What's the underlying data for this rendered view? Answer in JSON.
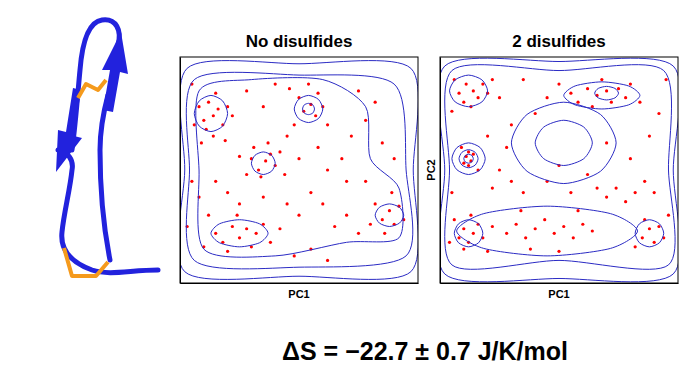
{
  "chart_data": [
    {
      "type": "scatter",
      "title": "No disulfides",
      "x_label": "PC1",
      "xlim": [
        0,
        100
      ],
      "ylim": [
        0,
        100
      ],
      "xticks": [],
      "yticks": [],
      "tick_labels": false,
      "series": [
        {
          "type": "scatter",
          "color": "#ff0000",
          "marker": "dot",
          "x": [
            8,
            10,
            12,
            14,
            16,
            11,
            18,
            6,
            15,
            20,
            9,
            14,
            19,
            22,
            30,
            33,
            36,
            38,
            34,
            40,
            28,
            31,
            37,
            42,
            25,
            44,
            52,
            55,
            57,
            50,
            58,
            48,
            60,
            54,
            46,
            62,
            15,
            18,
            22,
            25,
            28,
            32,
            20,
            30,
            35,
            12,
            24,
            38,
            10,
            42,
            85,
            88,
            90,
            92,
            86,
            94,
            82,
            89,
            80,
            5,
            8,
            15,
            20,
            45,
            50,
            55,
            60,
            65,
            70,
            75,
            55,
            62,
            48,
            70,
            68,
            72,
            78,
            82,
            75,
            85,
            90,
            50,
            58,
            45,
            28,
            35,
            40,
            5,
            3,
            62,
            78,
            35,
            25
          ],
          "values": [
            78,
            72,
            80,
            74,
            77,
            68,
            70,
            70,
            84,
            78,
            62,
            65,
            63,
            74,
            55,
            50,
            54,
            57,
            47,
            52,
            48,
            60,
            62,
            58,
            56,
            48,
            76,
            79,
            74,
            82,
            84,
            70,
            78,
            88,
            86,
            70,
            22,
            18,
            25,
            20,
            24,
            22,
            14,
            16,
            26,
            30,
            30,
            18,
            16,
            24,
            28,
            32,
            26,
            34,
            22,
            28,
            35,
            40,
            26,
            45,
            38,
            45,
            40,
            35,
            30,
            40,
            35,
            25,
            30,
            22,
            15,
            10,
            12,
            45,
            55,
            65,
            72,
            80,
            85,
            62,
            55,
            55,
            60,
            65,
            85,
            78,
            88,
            88,
            25,
            50,
            45,
            38,
            35
          ]
        },
        {
          "type": "contour",
          "color": "#2b2bc4",
          "line_style": "solid",
          "x": [
            2,
            50,
            97,
            98,
            97,
            50,
            3,
            2
          ],
          "values": [
            5,
            3,
            5,
            50,
            95,
            97,
            95,
            50
          ]
        },
        {
          "type": "contour",
          "color": "#2b2bc4",
          "line_style": "solid",
          "x": [
            6,
            50,
            95,
            95,
            90,
            50,
            6,
            4
          ],
          "values": [
            10,
            7,
            12,
            50,
            88,
            92,
            90,
            50
          ]
        },
        {
          "type": "contour",
          "color": "#2b2bc4",
          "line_style": "solid",
          "x": [
            10,
            40,
            70,
            92,
            92,
            80,
            78,
            60,
            30,
            8,
            8
          ],
          "values": [
            15,
            12,
            18,
            20,
            42,
            55,
            78,
            90,
            90,
            85,
            50
          ]
        },
        {
          "type": "contour",
          "color": "#2b2bc4",
          "line_style": "solid",
          "x": [
            20,
            17.9,
            13,
            8.1,
            6,
            8.1,
            13,
            17.9
          ],
          "values": [
            75,
            80.6,
            83,
            80.6,
            75,
            69.4,
            67,
            69.4
          ]
        },
        {
          "type": "contour",
          "color": "#2b2bc4",
          "line_style": "solid",
          "x": [
            40,
            38.5,
            35,
            31.5,
            30,
            31.5,
            35,
            38.5
          ],
          "values": [
            53,
            56.5,
            58,
            56.5,
            53,
            49.5,
            48,
            49.5
          ]
        },
        {
          "type": "contour",
          "color": "#2b2bc4",
          "line_style": "solid",
          "x": [
            60,
            58.2,
            54,
            49.8,
            48,
            49.8,
            54,
            58.2
          ],
          "values": [
            77,
            81.2,
            83,
            81.2,
            77,
            72.8,
            71,
            72.8
          ]
        },
        {
          "type": "contour",
          "color": "#2b2bc4",
          "line_style": "solid",
          "x": [
            56.5,
            55.8,
            54,
            52.2,
            51.5,
            52.2,
            54,
            55.8
          ],
          "values": [
            77,
            78.8,
            79.5,
            78.8,
            77,
            75.2,
            74.5,
            75.2
          ]
        },
        {
          "type": "contour",
          "color": "#2b2bc4",
          "line_style": "solid",
          "x": [
            37,
            33.4,
            25,
            16.6,
            13,
            16.6,
            25,
            33.4
          ],
          "values": [
            22,
            26.2,
            28,
            26.2,
            22,
            17.8,
            16,
            17.8
          ]
        },
        {
          "type": "contour",
          "color": "#2b2bc4",
          "line_style": "solid",
          "x": [
            94,
            92.2,
            88,
            83.8,
            82,
            83.8,
            88,
            92.2
          ],
          "values": [
            30,
            33.5,
            35,
            33.5,
            30,
            26.5,
            25,
            26.5
          ]
        }
      ]
    },
    {
      "type": "scatter",
      "title": "2 disulfides",
      "x_label": "PC1",
      "y_label": "PC2",
      "xlim": [
        0,
        100
      ],
      "ylim": [
        0,
        100
      ],
      "xticks": [],
      "yticks": [],
      "tick_labels": false,
      "series": [
        {
          "type": "scatter",
          "color": "#ff0000",
          "marker": "dot",
          "x": [
            8,
            11,
            14,
            16,
            10,
            18,
            6,
            13,
            20,
            22,
            25,
            5,
            55,
            58,
            62,
            66,
            70,
            72,
            75,
            78,
            68,
            80,
            64,
            84,
            50,
            45,
            11,
            13,
            12,
            10,
            14,
            12,
            9,
            16,
            8,
            10,
            12,
            14,
            16,
            10,
            6,
            18,
            20,
            13,
            4,
            22,
            28,
            32,
            36,
            40,
            44,
            48,
            52,
            56,
            60,
            64,
            38,
            50,
            58,
            34,
            85,
            88,
            90,
            92,
            86,
            94,
            82,
            96,
            70,
            74,
            78,
            82,
            66,
            86,
            90,
            30,
            35,
            25,
            20,
            30,
            40,
            5,
            22,
            45,
            55,
            62,
            80,
            88,
            92,
            95,
            35,
            28,
            50,
            70
          ],
          "values": [
            84,
            88,
            85,
            82,
            80,
            88,
            90,
            78,
            84,
            90,
            82,
            76,
            84,
            80,
            86,
            83,
            85,
            80,
            86,
            82,
            90,
            88,
            78,
            80,
            88,
            82,
            56,
            54,
            58,
            53,
            57,
            52,
            60,
            50,
            20,
            24,
            18,
            22,
            26,
            15,
            28,
            20,
            14,
            30,
            18,
            25,
            22,
            26,
            20,
            24,
            28,
            22,
            25,
            20,
            26,
            23,
            15,
            14,
            32,
            32,
            20,
            24,
            18,
            25,
            28,
            20,
            16,
            30,
            38,
            42,
            36,
            40,
            42,
            45,
            40,
            45,
            40,
            50,
            65,
            70,
            75,
            40,
            42,
            45,
            40,
            48,
            55,
            65,
            75,
            90,
            90,
            60,
            52,
            62
          ]
        },
        {
          "type": "contour",
          "color": "#2b2bc4",
          "line_style": "solid",
          "x": [
            2,
            50,
            98,
            98,
            98,
            50,
            2,
            2
          ],
          "values": [
            4,
            2,
            4,
            50,
            96,
            98,
            96,
            50
          ]
        },
        {
          "type": "contour",
          "color": "#2b2bc4",
          "line_style": "solid",
          "x": [
            5,
            50,
            96,
            96,
            94,
            50,
            5,
            4
          ],
          "values": [
            8,
            10,
            8,
            50,
            94,
            94,
            94,
            50
          ]
        },
        {
          "type": "contour",
          "color": "#2b2bc4",
          "line_style": "solid",
          "x": [
            20,
            17.6,
            12,
            6.4,
            4,
            6.4,
            12,
            17.6
          ],
          "values": [
            85,
            89.9,
            92,
            89.9,
            85,
            80.1,
            78,
            80.1
          ]
        },
        {
          "type": "contour",
          "color": "#2b2bc4",
          "line_style": "solid",
          "x": [
            84,
            79.2,
            68,
            56.8,
            52,
            56.8,
            68,
            79.2
          ],
          "values": [
            83,
            87.2,
            89,
            87.2,
            83,
            78.8,
            77,
            78.8
          ]
        },
        {
          "type": "contour",
          "color": "#2b2bc4",
          "line_style": "solid",
          "x": [
            75,
            73.5,
            70,
            66.5,
            65,
            66.5,
            70,
            73.5
          ],
          "values": [
            84,
            86.1,
            87,
            86.1,
            84,
            81.9,
            81,
            81.9
          ]
        },
        {
          "type": "contour",
          "color": "#2b2bc4",
          "line_style": "solid",
          "x": [
            14,
            13.4,
            12,
            10.6,
            10,
            10.6,
            12,
            13.4
          ],
          "values": [
            55,
            56.4,
            57,
            56.4,
            55,
            53.6,
            53,
            53.6
          ]
        },
        {
          "type": "contour",
          "color": "#2b2bc4",
          "line_style": "solid",
          "x": [
            16,
            14.8,
            12,
            9.2,
            8,
            9.2,
            12,
            14.8
          ],
          "values": [
            55,
            57.8,
            59,
            57.8,
            55,
            52.2,
            51,
            52.2
          ]
        },
        {
          "type": "contour",
          "color": "#2b2bc4",
          "line_style": "solid",
          "x": [
            19,
            16.9,
            12,
            7.1,
            5,
            7.1,
            12,
            16.9
          ],
          "values": [
            55,
            59.9,
            62,
            59.9,
            55,
            50.1,
            48,
            50.1
          ]
        },
        {
          "type": "contour",
          "color": "#2b2bc4",
          "line_style": "solid",
          "x": [
            18,
            16.2,
            12,
            7.8,
            6,
            7.8,
            12,
            16.2
          ],
          "values": [
            22,
            26.2,
            28,
            26.2,
            22,
            17.8,
            16,
            17.8
          ]
        },
        {
          "type": "contour",
          "color": "#2b2bc4",
          "line_style": "solid",
          "x": [
            83,
            71.6,
            45,
            18.4,
            7,
            18.4,
            45,
            71.6
          ],
          "values": [
            23,
            30.7,
            34,
            30.7,
            23,
            15.3,
            12,
            15.3
          ]
        },
        {
          "type": "contour",
          "color": "#2b2bc4",
          "line_style": "solid",
          "x": [
            94,
            92.2,
            88,
            83.8,
            82,
            83.8,
            88,
            92.2
          ],
          "values": [
            22,
            26.2,
            28,
            26.2,
            22,
            17.8,
            16,
            17.8
          ]
        },
        {
          "type": "contour",
          "color": "#2b2bc4",
          "line_style": "solid",
          "x": [
            64,
            60.4,
            52,
            43.6,
            40,
            43.6,
            52,
            60.4
          ],
          "values": [
            62,
            69,
            72,
            69,
            62,
            55,
            52,
            55
          ]
        },
        {
          "type": "contour",
          "color": "#2b2bc4",
          "line_style": "solid",
          "x": [
            74,
            67.4,
            52,
            36.6,
            30,
            36.6,
            52,
            67.4
          ],
          "values": [
            62,
            74.6,
            80,
            74.6,
            62,
            49.4,
            44,
            49.4
          ]
        }
      ]
    }
  ],
  "caption": "ΔS = −22.7 ± 0.7 J/K/mol"
}
